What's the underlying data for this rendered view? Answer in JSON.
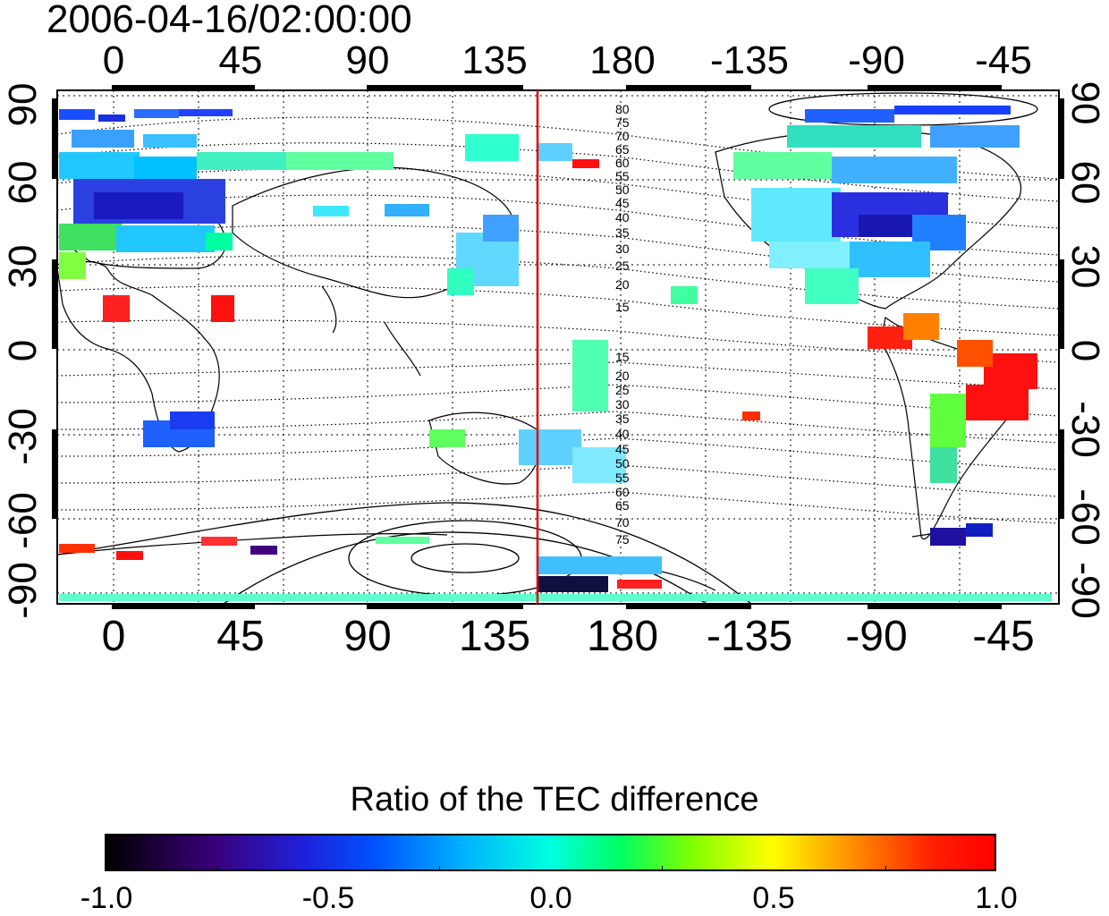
{
  "title": "2006-04-16/02:00:00",
  "map": {
    "top_lon_labels": [
      "0",
      "45",
      "90",
      "135",
      "180",
      "-135",
      "-90",
      "-45"
    ],
    "bottom_lon_labels": [
      "0",
      "45",
      "90",
      "135",
      "180",
      "-135",
      "-90",
      "-45"
    ],
    "left_lat_labels": [
      "90",
      "60",
      "30",
      "0",
      "-30",
      "-60",
      "-90"
    ],
    "right_lat_labels": [
      "90",
      "60",
      "30",
      "0",
      "-30",
      "-60",
      "-90"
    ],
    "contour_labels_north": [
      "80",
      "75",
      "70",
      "65",
      "60",
      "55",
      "50",
      "45",
      "40",
      "35",
      "30",
      "25",
      "20",
      "15"
    ],
    "contour_labels_south": [
      "15",
      "20",
      "25",
      "30",
      "35",
      "40",
      "45",
      "50",
      "55",
      "60",
      "65",
      "70",
      "75"
    ],
    "meridian_marker_color": "#e00000"
  },
  "colorbar": {
    "title": "Ratio of the TEC difference",
    "ticks": [
      "-1.0",
      "-0.5",
      "0.0",
      "0.5",
      "1.0"
    ]
  }
}
